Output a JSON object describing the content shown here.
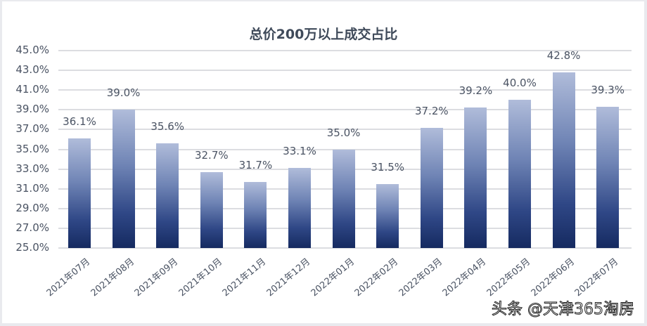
{
  "title": "总价200万以上成交占比",
  "watermark": "头条 @天津365淘房",
  "y_ticks": [
    "45.0%",
    "43.0%",
    "41.0%",
    "39.0%",
    "37.0%",
    "35.0%",
    "33.0%",
    "31.0%",
    "29.0%",
    "27.0%",
    "25.0%"
  ],
  "bars": [
    {
      "label": "2021年07月",
      "value": 36.1,
      "text": "36.1%"
    },
    {
      "label": "2021年08月",
      "value": 39.0,
      "text": "39.0%"
    },
    {
      "label": "2021年09月",
      "value": 35.6,
      "text": "35.6%"
    },
    {
      "label": "2021年10月",
      "value": 32.7,
      "text": "32.7%"
    },
    {
      "label": "2021年11月",
      "value": 31.7,
      "text": "31.7%"
    },
    {
      "label": "2021年12月",
      "value": 33.1,
      "text": "33.1%"
    },
    {
      "label": "2022年01月",
      "value": 35.0,
      "text": "35.0%"
    },
    {
      "label": "2022年02月",
      "value": 31.5,
      "text": "31.5%"
    },
    {
      "label": "2022年03月",
      "value": 37.2,
      "text": "37.2%"
    },
    {
      "label": "2022年04月",
      "value": 39.2,
      "text": "39.2%"
    },
    {
      "label": "2022年05月",
      "value": 40.0,
      "text": "40.0%"
    },
    {
      "label": "2022年06月",
      "value": 42.8,
      "text": "42.8%"
    },
    {
      "label": "2022年07月",
      "value": 39.3,
      "text": "39.3%"
    }
  ],
  "colors": {
    "bar_top": "#b0bcda",
    "bar_bottom": "#152a60",
    "grid": "#dcdde1",
    "text": "#4a5363",
    "title": "#3f4a5a"
  },
  "chart_data": {
    "type": "bar",
    "title": "总价200万以上成交占比",
    "categories": [
      "2021年07月",
      "2021年08月",
      "2021年09月",
      "2021年10月",
      "2021年11月",
      "2021年12月",
      "2022年01月",
      "2022年02月",
      "2022年03月",
      "2022年04月",
      "2022年05月",
      "2022年06月",
      "2022年07月"
    ],
    "values": [
      36.1,
      39.0,
      35.6,
      32.7,
      31.7,
      33.1,
      35.0,
      31.5,
      37.2,
      39.2,
      40.0,
      42.8,
      39.3
    ],
    "data_labels": [
      "36.1%",
      "39.0%",
      "35.6%",
      "32.7%",
      "31.7%",
      "33.1%",
      "35.0%",
      "31.5%",
      "37.2%",
      "39.2%",
      "40.0%",
      "42.8%",
      "39.3%"
    ],
    "xlabel": "",
    "ylabel": "",
    "ylim": [
      25.0,
      45.0
    ],
    "y_tick_step": 2.0,
    "y_format": "percent_1dp",
    "grid": true,
    "legend": "none"
  }
}
